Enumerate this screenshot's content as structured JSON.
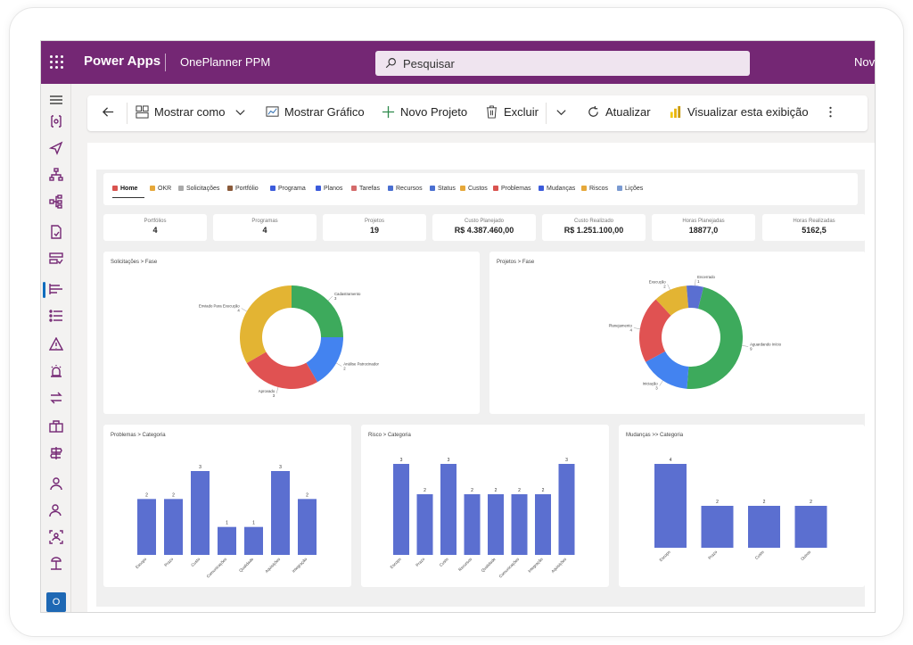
{
  "topbar": {
    "brand": "Power Apps",
    "app_name": "OnePlanner PPM",
    "search_placeholder": "Pesquisar",
    "right_text": "Nova"
  },
  "commandbar": {
    "back_icon": "arrow-left-icon",
    "show_as": "Mostrar como",
    "show_chart": "Mostrar Gráfico",
    "new_project": "Novo Projeto",
    "delete": "Excluir",
    "refresh": "Atualizar",
    "view": "Visualizar esta exibição"
  },
  "tabs": [
    {
      "label": "Home",
      "color": "#d9534f"
    },
    {
      "label": "OKR",
      "color": "#e6a83a"
    },
    {
      "label": "Solicitações",
      "color": "#aaaaaa"
    },
    {
      "label": "Portfólio",
      "color": "#8a5a3a"
    },
    {
      "label": "Programa",
      "color": "#3b5bdb"
    },
    {
      "label": "Planos",
      "color": "#3b5bdb"
    },
    {
      "label": "Tarefas",
      "color": "#d46a6a"
    },
    {
      "label": "Recursos",
      "color": "#4a6fd1"
    },
    {
      "label": "Status",
      "color": "#4a6fd1"
    },
    {
      "label": "Custos",
      "color": "#e6a83a"
    },
    {
      "label": "Problemas",
      "color": "#d9534f"
    },
    {
      "label": "Mudanças",
      "color": "#3b5bdb"
    },
    {
      "label": "Riscos",
      "color": "#e6a83a"
    },
    {
      "label": "Lições",
      "color": "#7a9ad1"
    }
  ],
  "kpis": [
    {
      "label": "Portfólios",
      "value": "4"
    },
    {
      "label": "Programas",
      "value": "4"
    },
    {
      "label": "Projetos",
      "value": "19"
    },
    {
      "label": "Custo Planejado",
      "value": "R$ 4.387.460,00"
    },
    {
      "label": "Custo Realizado",
      "value": "R$ 1.251.100,00"
    },
    {
      "label": "Horas Planejadas",
      "value": "18877,0"
    },
    {
      "label": "Horas Realizadas",
      "value": "5162,5"
    }
  ],
  "colors": {
    "green": "#3daa5c",
    "blue": "#4383f0",
    "red": "#e05252",
    "yellow": "#e3b433",
    "indigo": "#5a6fd1",
    "bar": "#5b6fd0"
  },
  "chart_data": [
    {
      "type": "pie",
      "title": "Solicitações > Fase",
      "categories": [
        "Cadastramento",
        "Análise Patrocinador",
        "Aprovado",
        "Enviado Para Execução"
      ],
      "values": [
        3,
        2,
        3,
        4
      ],
      "colors": [
        "#3daa5c",
        "#4383f0",
        "#e05252",
        "#e3b433"
      ]
    },
    {
      "type": "pie",
      "title": "Projetos > Fase",
      "categories": [
        "Aguardando Início",
        "Iniciação",
        "Planejamento",
        "Execução",
        "Encerrado"
      ],
      "values": [
        9,
        3,
        4,
        2,
        1
      ],
      "colors": [
        "#3daa5c",
        "#4383f0",
        "#e05252",
        "#e3b433",
        "#5a6fd1"
      ]
    },
    {
      "type": "bar",
      "title": "Problemas > Categoria",
      "categories": [
        "Escopo",
        "Prazo",
        "Custo",
        "Comunicações",
        "Qualidade",
        "Aquisições",
        "Integração"
      ],
      "values": [
        2,
        2,
        3,
        1,
        1,
        3,
        2
      ],
      "ylim": [
        0,
        3
      ]
    },
    {
      "type": "bar",
      "title": "Risco > Categoria",
      "categories": [
        "Escopo",
        "Prazo",
        "Custo",
        "Recursos",
        "Qualidade",
        "Comunicações",
        "Integração",
        "Aquisições"
      ],
      "values": [
        3,
        2,
        3,
        2,
        2,
        2,
        2,
        3
      ],
      "ylim": [
        0,
        3
      ]
    },
    {
      "type": "bar",
      "title": "Mudanças >> Categoria",
      "categories": [
        "Escopo",
        "Prazo",
        "Custo",
        "Outros"
      ],
      "values": [
        4,
        2,
        2,
        2
      ],
      "ylim": [
        0,
        4
      ]
    }
  ]
}
